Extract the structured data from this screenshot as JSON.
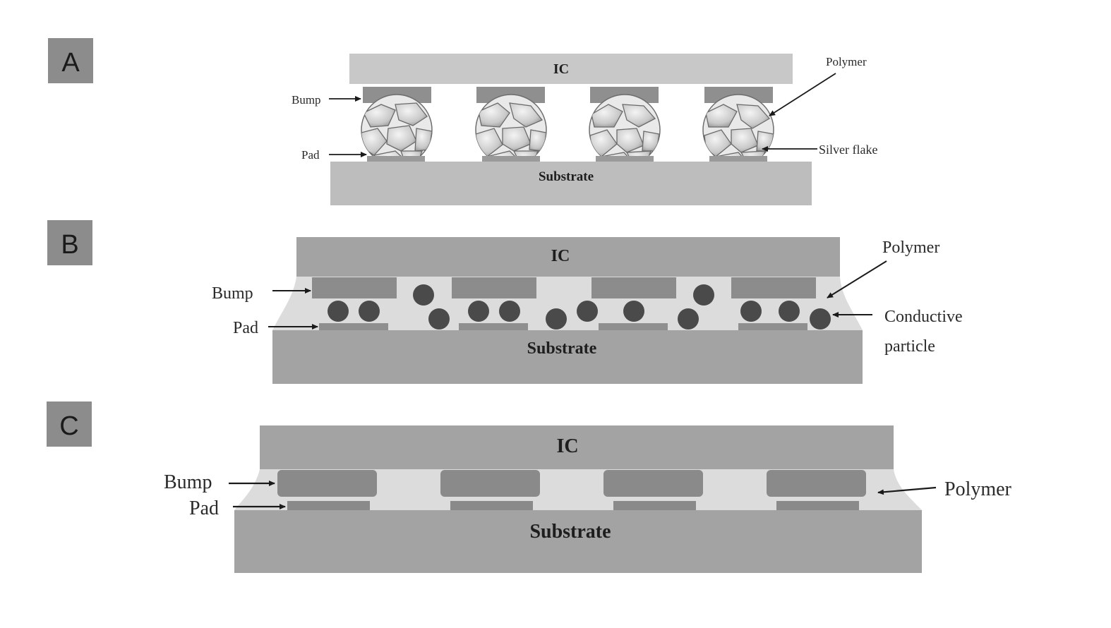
{
  "panels": [
    {
      "label": "A",
      "ic_label": "IC",
      "substrate_label": "Substrate",
      "callouts": {
        "bump": "Bump",
        "pad": "Pad",
        "polymer": "Polymer",
        "silver_flake": "Silver flake"
      }
    },
    {
      "label": "B",
      "ic_label": "IC",
      "substrate_label": "Substrate",
      "callouts": {
        "bump": "Bump",
        "pad": "Pad",
        "polymer": "Polymer",
        "conductive_line1": "Conductive",
        "conductive_line2": "particle"
      }
    },
    {
      "label": "C",
      "ic_label": "IC",
      "substrate_label": "Substrate",
      "callouts": {
        "bump": "Bump",
        "pad": "Pad",
        "polymer": "Polymer"
      }
    }
  ],
  "colors": {
    "label_box": "#8c8c8c",
    "ic_light": "#c8c8c8",
    "ic_dark": "#9c9c9c",
    "bump": "#888888",
    "substrate_light": "#bdbdbd",
    "substrate_dark": "#a3a3a3",
    "polymer": "#dcdcdc",
    "particle": "#4a4a4a"
  }
}
